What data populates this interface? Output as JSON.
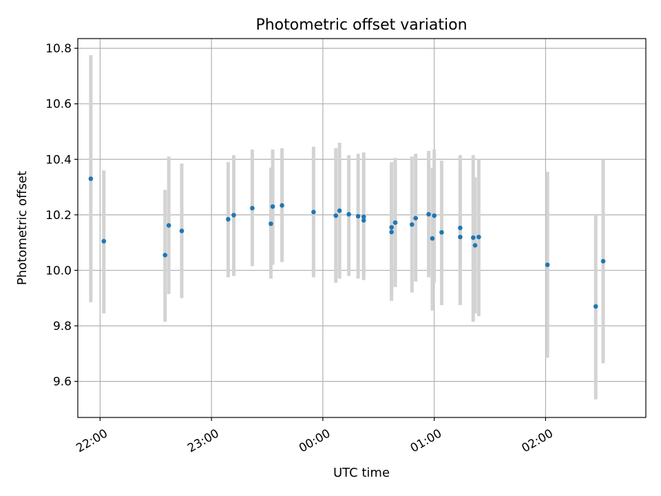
{
  "chart_data": {
    "type": "scatter",
    "title": "Photometric offset variation",
    "xlabel": "UTC time",
    "ylabel": "Photometric offset",
    "x_ticks": [
      "22:00",
      "23:00",
      "00:00",
      "01:00",
      "02:00"
    ],
    "y_ticks": [
      "9.6",
      "9.8",
      "10.0",
      "10.2",
      "10.4",
      "10.6",
      "10.8"
    ],
    "xlim": [
      "21:48",
      "02:54"
    ],
    "ylim": [
      9.47,
      10.835
    ],
    "grid": true,
    "colors": {
      "point": "#1f77b4",
      "errorbar": "#d3d3d3",
      "grid": "#b0b0b0"
    },
    "points": [
      {
        "t": "21:55",
        "y": 10.33,
        "lo": 9.885,
        "hi": 10.775
      },
      {
        "t": "22:02",
        "y": 10.105,
        "lo": 9.845,
        "hi": 10.36
      },
      {
        "t": "22:35",
        "y": 10.055,
        "lo": 9.815,
        "hi": 10.29
      },
      {
        "t": "22:37",
        "y": 10.162,
        "lo": 9.915,
        "hi": 10.41
      },
      {
        "t": "22:44",
        "y": 10.142,
        "lo": 9.9,
        "hi": 10.385
      },
      {
        "t": "23:09",
        "y": 10.184,
        "lo": 9.975,
        "hi": 10.39
      },
      {
        "t": "23:12",
        "y": 10.199,
        "lo": 9.98,
        "hi": 10.415
      },
      {
        "t": "23:22",
        "y": 10.224,
        "lo": 10.015,
        "hi": 10.435
      },
      {
        "t": "23:32",
        "y": 10.168,
        "lo": 9.97,
        "hi": 10.37
      },
      {
        "t": "23:33",
        "y": 10.23,
        "lo": 10.02,
        "hi": 10.435
      },
      {
        "t": "23:38",
        "y": 10.234,
        "lo": 10.03,
        "hi": 10.44
      },
      {
        "t": "23:55",
        "y": 10.21,
        "lo": 9.975,
        "hi": 10.445
      },
      {
        "t": "00:07",
        "y": 10.197,
        "lo": 9.955,
        "hi": 10.44
      },
      {
        "t": "00:09",
        "y": 10.215,
        "lo": 9.97,
        "hi": 10.46
      },
      {
        "t": "00:14",
        "y": 10.202,
        "lo": 9.98,
        "hi": 10.415
      },
      {
        "t": "00:19",
        "y": 10.195,
        "lo": 9.97,
        "hi": 10.42
      },
      {
        "t": "00:22",
        "y": 10.193,
        "lo": 9.965,
        "hi": 10.425
      },
      {
        "t": "00:22",
        "y": 10.18,
        "lo": 9.965,
        "hi": 10.4
      },
      {
        "t": "00:37",
        "y": 10.155,
        "lo": 9.91,
        "hi": 10.39
      },
      {
        "t": "00:37",
        "y": 10.138,
        "lo": 9.89,
        "hi": 10.38
      },
      {
        "t": "00:39",
        "y": 10.172,
        "lo": 9.94,
        "hi": 10.405
      },
      {
        "t": "00:48",
        "y": 10.165,
        "lo": 9.92,
        "hi": 10.41
      },
      {
        "t": "00:50",
        "y": 10.188,
        "lo": 9.96,
        "hi": 10.42
      },
      {
        "t": "00:57",
        "y": 10.202,
        "lo": 9.975,
        "hi": 10.43
      },
      {
        "t": "00:59",
        "y": 10.115,
        "lo": 9.855,
        "hi": 10.37
      },
      {
        "t": "01:00",
        "y": 10.197,
        "lo": 9.955,
        "hi": 10.435
      },
      {
        "t": "01:04",
        "y": 10.137,
        "lo": 9.875,
        "hi": 10.395
      },
      {
        "t": "01:14",
        "y": 10.12,
        "lo": 9.875,
        "hi": 10.37
      },
      {
        "t": "01:14",
        "y": 10.153,
        "lo": 9.885,
        "hi": 10.415
      },
      {
        "t": "01:21",
        "y": 10.118,
        "lo": 9.815,
        "hi": 10.415
      },
      {
        "t": "01:22",
        "y": 10.09,
        "lo": 9.845,
        "hi": 10.335
      },
      {
        "t": "01:24",
        "y": 10.12,
        "lo": 9.835,
        "hi": 10.4
      },
      {
        "t": "02:01",
        "y": 10.02,
        "lo": 9.685,
        "hi": 10.355
      },
      {
        "t": "02:27",
        "y": 9.87,
        "lo": 9.535,
        "hi": 10.2
      },
      {
        "t": "02:31",
        "y": 10.033,
        "lo": 9.665,
        "hi": 10.4
      }
    ]
  }
}
